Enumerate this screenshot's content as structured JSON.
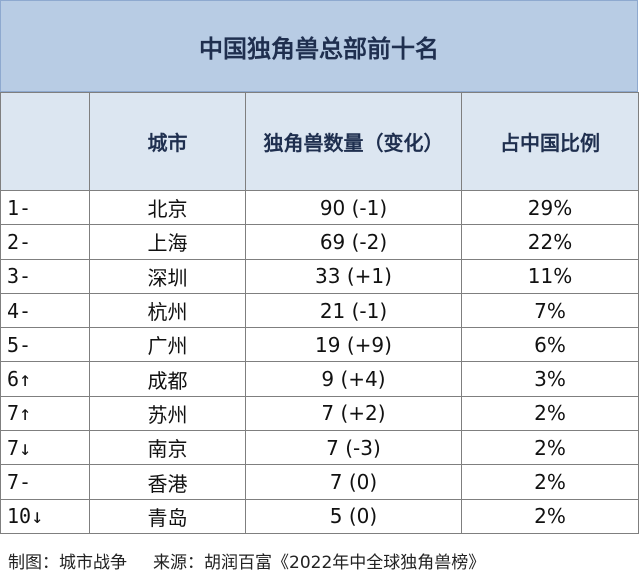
{
  "title": "中国独角兽总部前十名",
  "headers": {
    "rank": "",
    "city": "城市",
    "count": "独角兽数量（变化）",
    "share": "占中国比例"
  },
  "rows": [
    {
      "rank": "1-",
      "city": "北京",
      "count": "90 (-1)",
      "share": "29%"
    },
    {
      "rank": "2-",
      "city": "上海",
      "count": "69 (-2)",
      "share": "22%"
    },
    {
      "rank": "3-",
      "city": "深圳",
      "count": "33 (+1)",
      "share": "11%"
    },
    {
      "rank": "4-",
      "city": "杭州",
      "count": "21 (-1)",
      "share": "7%"
    },
    {
      "rank": "5-",
      "city": "广州",
      "count": "19 (+9)",
      "share": "6%"
    },
    {
      "rank": "6↑",
      "city": "成都",
      "count": "9 (+4)",
      "share": "3%"
    },
    {
      "rank": "7↑",
      "city": "苏州",
      "count": "7 (+2)",
      "share": "2%"
    },
    {
      "rank": "7↓",
      "city": "南京",
      "count": "7 (-3)",
      "share": "2%"
    },
    {
      "rank": "7-",
      "city": "香港",
      "count": "7 (0)",
      "share": "2%"
    },
    {
      "rank": "10↓",
      "city": "青岛",
      "count": "5 (0)",
      "share": "2%"
    }
  ],
  "footer": {
    "credit": "制图：城市战争",
    "source": "来源：胡润百富《2022年中全球独角兽榜》"
  }
}
